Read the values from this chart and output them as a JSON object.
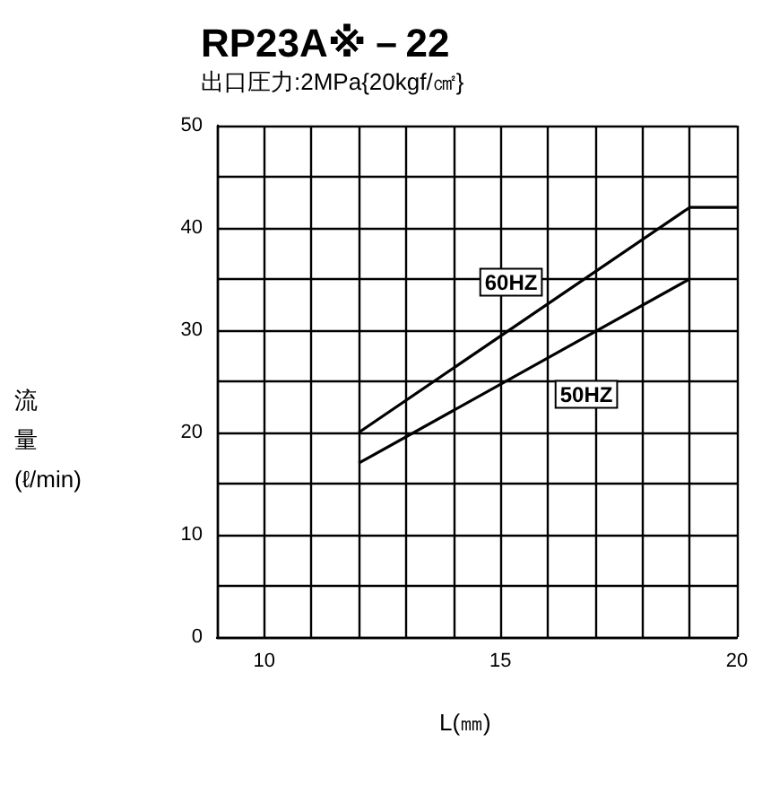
{
  "chart_data": {
    "type": "line",
    "title": "RP23A※－22",
    "subtitle": "出口圧力:2MPa{20kgf/㎠}",
    "xlabel": "L(㎜)",
    "ylabel": "流量(ℓ/min)",
    "series": [
      {
        "name": "60HZ",
        "color": "#000000",
        "x": [
          12,
          19,
          20
        ],
        "values": [
          20,
          42,
          42
        ]
      },
      {
        "name": "50HZ",
        "color": "#000000",
        "x": [
          12,
          19
        ],
        "values": [
          17,
          35
        ]
      }
    ],
    "xlim": [
      9,
      20
    ],
    "xticks": [
      {
        "value": 9,
        "label": null
      },
      10,
      {
        "value": 11,
        "label": null
      },
      {
        "value": 12,
        "label": null
      },
      {
        "value": 13,
        "label": null
      },
      {
        "value": 14,
        "label": null
      },
      15,
      {
        "value": 16,
        "label": null
      },
      {
        "value": 17,
        "label": null
      },
      {
        "value": 18,
        "label": null
      },
      {
        "value": 19,
        "label": null
      },
      20
    ],
    "ylim": [
      0,
      50
    ],
    "yticks": [
      0,
      {
        "value": 5,
        "label": null
      },
      10,
      {
        "value": 15,
        "label": null
      },
      20,
      {
        "value": 25,
        "label": null
      },
      30,
      {
        "value": 35,
        "label": null
      },
      40,
      {
        "value": 45,
        "label": null
      },
      50
    ],
    "grid": true,
    "legend": false,
    "marker": "none",
    "line_style": "solid"
  }
}
